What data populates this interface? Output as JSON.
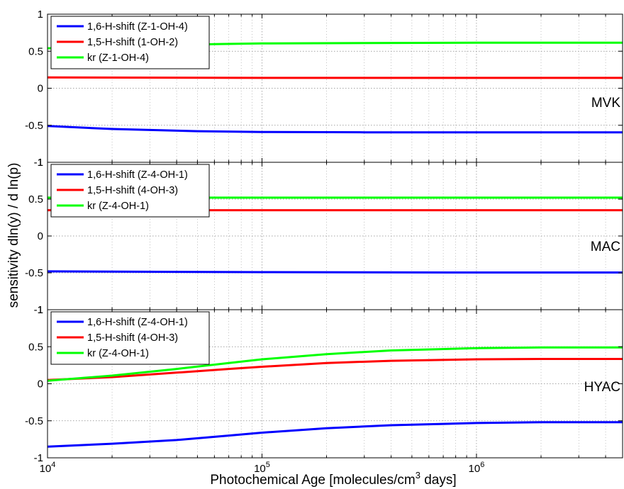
{
  "figure": {
    "ylabel": "sensitivity dln(y) / d ln(p)",
    "xlabel_prefix": "Photochemical Age [molecules/cm",
    "xlabel_sup": "3",
    "xlabel_suffix": " days]",
    "x_ticks": [
      {
        "base": "10",
        "exp": "4",
        "value": 10000
      },
      {
        "base": "10",
        "exp": "5",
        "value": 100000
      },
      {
        "base": "10",
        "exp": "6",
        "value": 1000000
      }
    ]
  },
  "chart_data": [
    {
      "type": "line",
      "panel_label": "MVK",
      "xscale": "log",
      "xlim": [
        10000,
        4800000
      ],
      "ylim": [
        -1,
        1
      ],
      "y_ticks": [
        "1",
        "0.5",
        "0",
        "-0.5",
        "-1"
      ],
      "grid": true,
      "legend_position": "top-left",
      "series": [
        {
          "name": "1,6-H-shift (Z-1-OH-4)",
          "color": "#0000ff",
          "x": [
            10000,
            20000,
            50000,
            100000,
            300000,
            1000000,
            4800000
          ],
          "y": [
            -0.51,
            -0.55,
            -0.58,
            -0.59,
            -0.595,
            -0.595,
            -0.595
          ]
        },
        {
          "name": "1,5-H-shift (1-OH-2)",
          "color": "#ff0000",
          "x": [
            10000,
            100000,
            1000000,
            4800000
          ],
          "y": [
            0.145,
            0.14,
            0.14,
            0.14
          ]
        },
        {
          "name": "kr (Z-1-OH-4)",
          "color": "#00ff00",
          "x": [
            10000,
            30000,
            60000,
            100000,
            1000000,
            4800000
          ],
          "y": [
            0.54,
            0.57,
            0.595,
            0.605,
            0.615,
            0.615
          ]
        }
      ]
    },
    {
      "type": "line",
      "panel_label": "MAC",
      "xscale": "log",
      "xlim": [
        10000,
        4800000
      ],
      "ylim": [
        -1,
        1
      ],
      "y_ticks": [
        "1",
        "0.5",
        "0",
        "-0.5",
        "-1"
      ],
      "grid": true,
      "legend_position": "top-left",
      "series": [
        {
          "name": "1,6-H-shift (Z-4-OH-1)",
          "color": "#0000ff",
          "x": [
            10000,
            100000,
            1000000,
            4800000
          ],
          "y": [
            -0.48,
            -0.49,
            -0.495,
            -0.495
          ]
        },
        {
          "name": "1,5-H-shift (4-OH-3)",
          "color": "#ff0000",
          "x": [
            10000,
            100000,
            1000000,
            4800000
          ],
          "y": [
            0.35,
            0.35,
            0.35,
            0.35
          ]
        },
        {
          "name": "kr (Z-4-OH-1)",
          "color": "#00ff00",
          "x": [
            10000,
            100000,
            1000000,
            4800000
          ],
          "y": [
            0.52,
            0.52,
            0.52,
            0.52
          ]
        }
      ]
    },
    {
      "type": "line",
      "panel_label": "HYAC",
      "xscale": "log",
      "xlim": [
        10000,
        4800000
      ],
      "ylim": [
        -1,
        1
      ],
      "y_ticks": [
        "1",
        "0.5",
        "0",
        "-0.5",
        "-1"
      ],
      "grid": true,
      "legend_position": "top-left",
      "series": [
        {
          "name": "1,6-H-shift (Z-4-OH-1)",
          "color": "#0000ff",
          "x": [
            10000,
            20000,
            40000,
            70000,
            100000,
            200000,
            400000,
            1000000,
            2000000,
            4800000
          ],
          "y": [
            -0.85,
            -0.81,
            -0.76,
            -0.7,
            -0.66,
            -0.6,
            -0.56,
            -0.53,
            -0.52,
            -0.52
          ]
        },
        {
          "name": "1,5-H-shift (4-OH-3)",
          "color": "#ff0000",
          "x": [
            10000,
            20000,
            40000,
            70000,
            100000,
            200000,
            400000,
            1000000,
            2000000,
            4800000
          ],
          "y": [
            0.05,
            0.09,
            0.15,
            0.2,
            0.23,
            0.28,
            0.31,
            0.33,
            0.335,
            0.335
          ]
        },
        {
          "name": "kr (Z-4-OH-1)",
          "color": "#00ff00",
          "x": [
            10000,
            20000,
            40000,
            70000,
            100000,
            200000,
            400000,
            1000000,
            2000000,
            4800000
          ],
          "y": [
            0.04,
            0.11,
            0.2,
            0.28,
            0.33,
            0.4,
            0.45,
            0.48,
            0.49,
            0.49
          ]
        }
      ]
    }
  ]
}
